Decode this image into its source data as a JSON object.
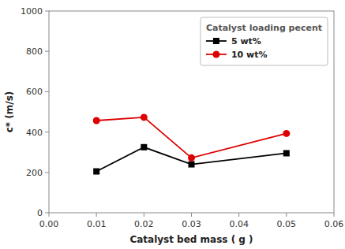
{
  "chart_data": {
    "type": "line",
    "xlabel": "Catalyst bed mass ( g )",
    "ylabel": "c* (m/s)",
    "x": [
      0.01,
      0.02,
      0.03,
      0.05
    ],
    "series": [
      {
        "name": "5 wt%",
        "color": "#000000",
        "marker": "square",
        "line_style": "solid",
        "values": [
          205,
          325,
          240,
          295
        ]
      },
      {
        "name": "10 wt%",
        "color": "#dd0000",
        "marker": "circle",
        "line_style": "solid",
        "values": [
          457,
          473,
          272,
          393
        ]
      }
    ],
    "xlim": [
      0,
      0.06
    ],
    "ylim": [
      0,
      1000
    ],
    "xticks": [
      {
        "value": 0,
        "label": "0.00"
      },
      0.01,
      0.02,
      0.03,
      0.04,
      0.05,
      0.06
    ],
    "yticks": [
      0,
      200,
      400,
      600,
      800,
      1000
    ],
    "legend_title": "Catalyst loading pecent",
    "legend": "upper right",
    "grid": false
  }
}
